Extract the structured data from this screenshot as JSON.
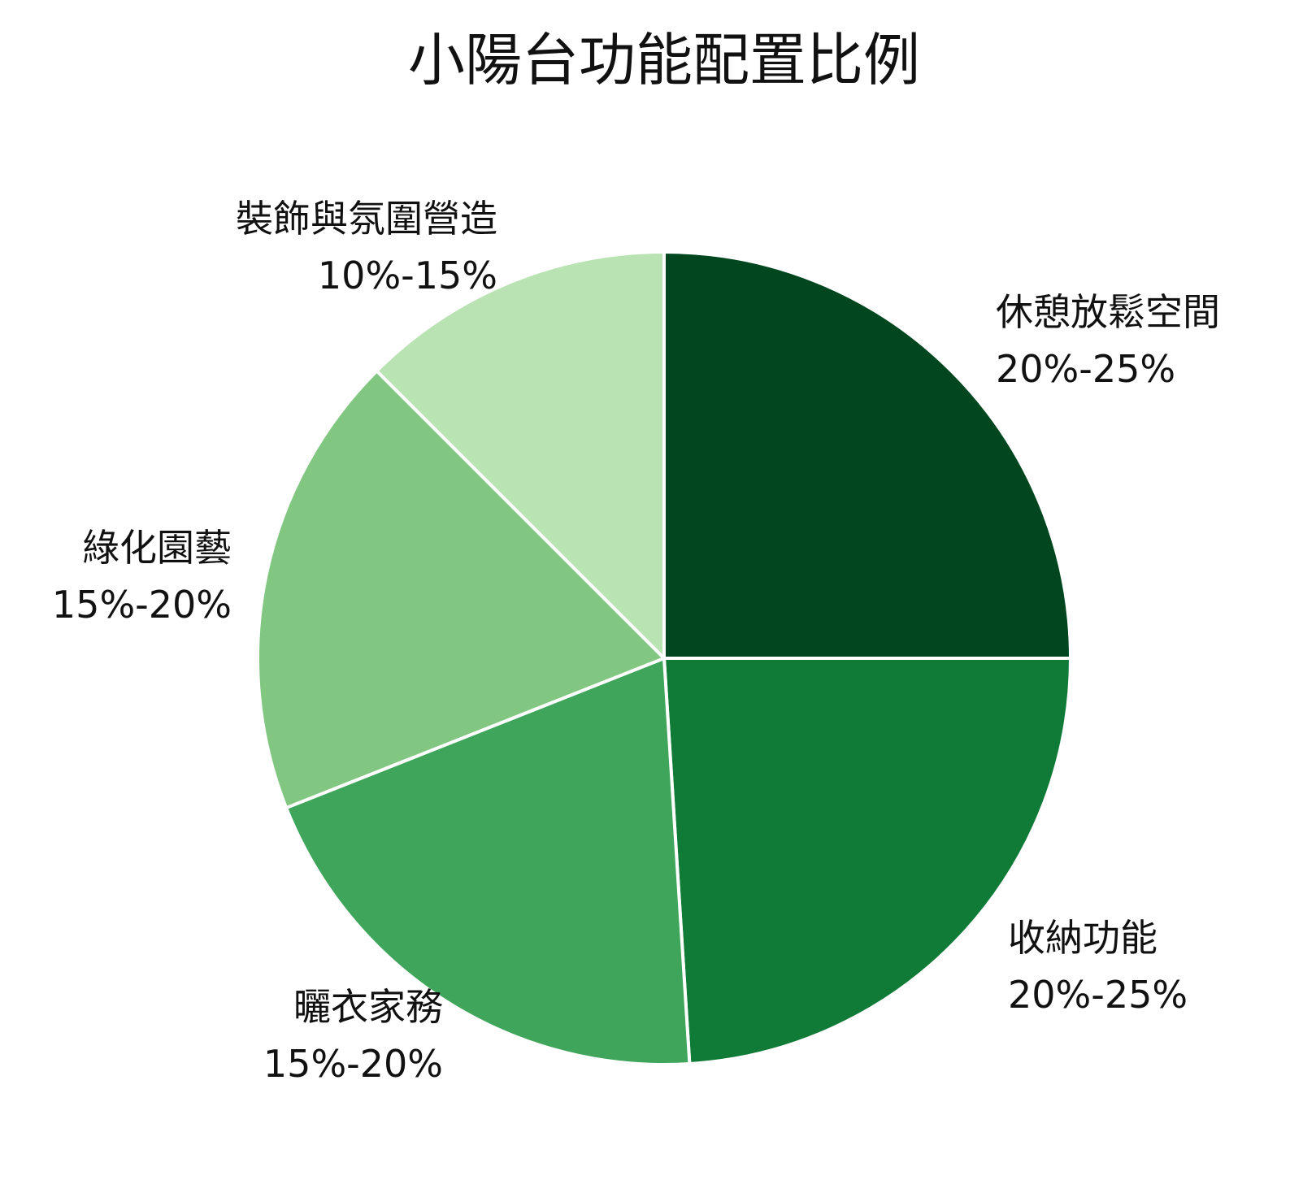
{
  "chart_data": {
    "type": "pie",
    "title": "小陽台功能配置比例",
    "slices": [
      {
        "label": "休憩放鬆空間",
        "range_text": "20%-25%",
        "value": 25,
        "color": "#00471f"
      },
      {
        "label": "收納功能",
        "range_text": "20%-25%",
        "value": 24,
        "color": "#107a37"
      },
      {
        "label": "曬衣家務",
        "range_text": "15%-20%",
        "value": 20,
        "color": "#3ea55b"
      },
      {
        "label": "綠化園藝",
        "range_text": "15%-20%",
        "value": 18.5,
        "color": "#81c781"
      },
      {
        "label": "裝飾與氛圍營造",
        "range_text": "10%-15%",
        "value": 12.5,
        "color": "#b9e3b2"
      }
    ],
    "start_angle": "top",
    "direction": "clockwise",
    "slice_border_color": "#ffffff",
    "legend": "none"
  }
}
